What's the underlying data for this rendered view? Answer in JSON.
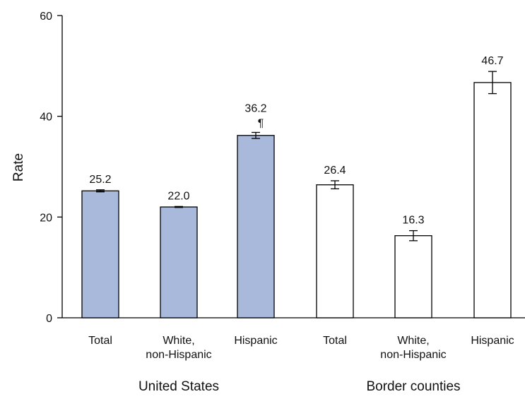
{
  "chart_data": {
    "type": "bar",
    "ylabel": "Rate",
    "ylim": [
      0,
      60
    ],
    "yticks": [
      0,
      20,
      40,
      60
    ],
    "grid": false,
    "bars": [
      {
        "group": "United States",
        "category": "Total",
        "value": 25.2,
        "label": "25.2",
        "error": [
          25.0,
          25.4
        ],
        "fill": "#a9b9dc",
        "note": ""
      },
      {
        "group": "United States",
        "category": "White, non-Hispanic",
        "value": 22.0,
        "label": "22.0",
        "error": [
          21.9,
          22.1
        ],
        "fill": "#a9b9dc",
        "note": ""
      },
      {
        "group": "United States",
        "category": "Hispanic",
        "value": 36.2,
        "label": "36.2",
        "error": [
          35.6,
          36.8
        ],
        "fill": "#a9b9dc",
        "note": "¶"
      },
      {
        "group": "Border counties",
        "category": "Total",
        "value": 26.4,
        "label": "26.4",
        "error": [
          25.6,
          27.2
        ],
        "fill": "#ffffff",
        "note": ""
      },
      {
        "group": "Border counties",
        "category": "White, non-Hispanic",
        "value": 16.3,
        "label": "16.3",
        "error": [
          15.3,
          17.3
        ],
        "fill": "#ffffff",
        "note": ""
      },
      {
        "group": "Border counties",
        "category": "Hispanic",
        "value": 46.7,
        "label": "46.7",
        "error": [
          44.5,
          48.9
        ],
        "fill": "#ffffff",
        "note": ""
      }
    ],
    "groups": [
      "United States",
      "Border counties"
    ]
  }
}
